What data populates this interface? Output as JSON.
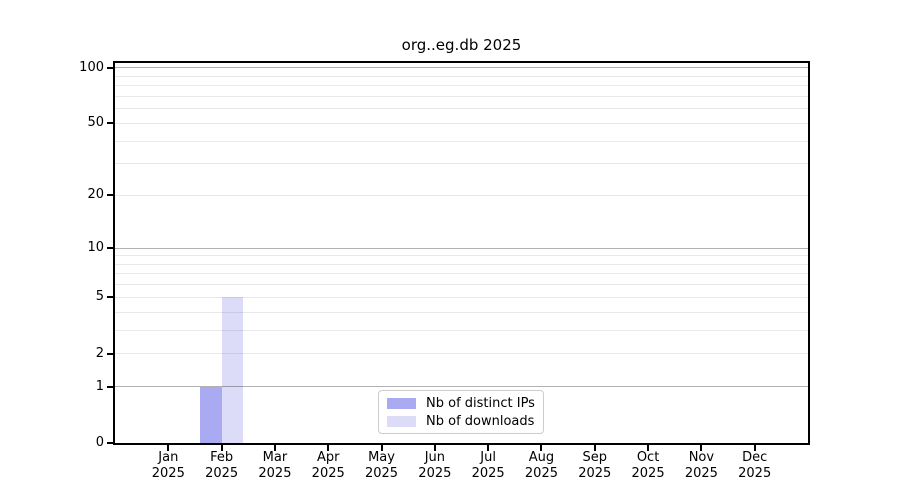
{
  "chart_data": {
    "type": "bar",
    "title": "org..eg.db 2025",
    "x_categories": [
      "Jan",
      "Feb",
      "Mar",
      "Apr",
      "May",
      "Jun",
      "Jul",
      "Aug",
      "Sep",
      "Oct",
      "Nov",
      "Dec"
    ],
    "x_year_label": "2025",
    "y_ticks": [
      0,
      1,
      2,
      5,
      10,
      20,
      50,
      100
    ],
    "y_gridlines_major": [
      1,
      10,
      100
    ],
    "y_gridlines_minor": [
      2,
      3,
      4,
      5,
      6,
      7,
      8,
      9,
      20,
      30,
      40,
      50,
      60,
      70,
      80,
      90
    ],
    "y_scale": "log10(1+v)",
    "y_max": 106,
    "ylim": [
      0,
      106
    ],
    "grid": "horizontal",
    "legend_position": "lower center",
    "series": [
      {
        "name": "Nb of distinct IPs",
        "color": "#aaaaf2",
        "values": [
          0,
          1,
          0,
          0,
          0,
          0,
          0,
          0,
          0,
          0,
          0,
          0
        ]
      },
      {
        "name": "Nb of downloads",
        "color": "#dcdcf8",
        "values": [
          0,
          5,
          0,
          0,
          0,
          0,
          0,
          0,
          0,
          0,
          0,
          0
        ]
      }
    ],
    "colors": {
      "axis": "#000000",
      "grid_major": "rgba(0,0,0,0.30)",
      "grid_minor": "rgba(0,0,0,0.085)",
      "legend_border": "#cccccc",
      "background": "#ffffff"
    }
  }
}
